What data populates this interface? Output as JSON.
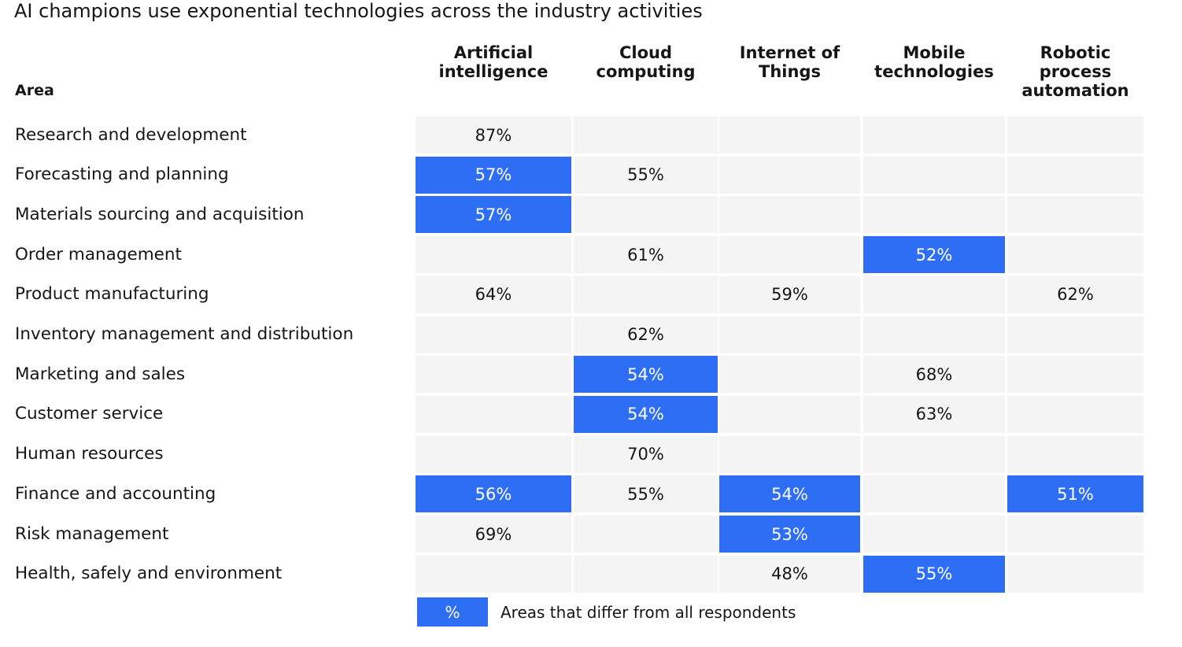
{
  "chart_data": {
    "type": "table",
    "title": "AI champions use exponential technologies across the industry activities",
    "row_header": "Area",
    "columns": [
      "Artificial\nintelligence",
      "Cloud\ncomputing",
      "Internet of\nThings",
      "Mobile\ntechnologies",
      "Robotic\nprocess\nautomation"
    ],
    "rows": [
      {
        "label": "Research and development",
        "cells": [
          {
            "value": "87%",
            "highlight": false
          },
          null,
          null,
          null,
          null
        ]
      },
      {
        "label": "Forecasting and planning",
        "cells": [
          {
            "value": "57%",
            "highlight": true
          },
          {
            "value": "55%",
            "highlight": false
          },
          null,
          null,
          null
        ]
      },
      {
        "label": "Materials sourcing and acquisition",
        "cells": [
          {
            "value": "57%",
            "highlight": true
          },
          null,
          null,
          null,
          null
        ]
      },
      {
        "label": "Order management",
        "cells": [
          null,
          {
            "value": "61%",
            "highlight": false
          },
          null,
          {
            "value": "52%",
            "highlight": true
          },
          null
        ]
      },
      {
        "label": "Product manufacturing",
        "cells": [
          {
            "value": "64%",
            "highlight": false
          },
          null,
          {
            "value": "59%",
            "highlight": false
          },
          null,
          {
            "value": "62%",
            "highlight": false
          }
        ]
      },
      {
        "label": "Inventory management and distribution",
        "cells": [
          null,
          {
            "value": "62%",
            "highlight": false
          },
          null,
          null,
          null
        ]
      },
      {
        "label": "Marketing and sales",
        "cells": [
          null,
          {
            "value": "54%",
            "highlight": true
          },
          null,
          {
            "value": "68%",
            "highlight": false
          },
          null
        ]
      },
      {
        "label": "Customer service",
        "cells": [
          null,
          {
            "value": "54%",
            "highlight": true
          },
          null,
          {
            "value": "63%",
            "highlight": false
          },
          null
        ]
      },
      {
        "label": "Human resources",
        "cells": [
          null,
          {
            "value": "70%",
            "highlight": false
          },
          null,
          null,
          null
        ]
      },
      {
        "label": "Finance and accounting",
        "cells": [
          {
            "value": "56%",
            "highlight": true
          },
          {
            "value": "55%",
            "highlight": false
          },
          {
            "value": "54%",
            "highlight": true
          },
          null,
          {
            "value": "51%",
            "highlight": true
          }
        ]
      },
      {
        "label": "Risk management",
        "cells": [
          {
            "value": "69%",
            "highlight": false
          },
          null,
          {
            "value": "53%",
            "highlight": true
          },
          null,
          null
        ]
      },
      {
        "label": "Health, safely and environment",
        "cells": [
          null,
          null,
          {
            "value": "48%",
            "highlight": false
          },
          {
            "value": "55%",
            "highlight": true
          },
          null
        ]
      }
    ],
    "legend": {
      "symbol": "%",
      "text": "Areas that differ from all respondents",
      "color": "#2d6ef5"
    },
    "colors": {
      "highlight": "#2d6ef5",
      "cell_background": "#f4f4f4"
    }
  }
}
